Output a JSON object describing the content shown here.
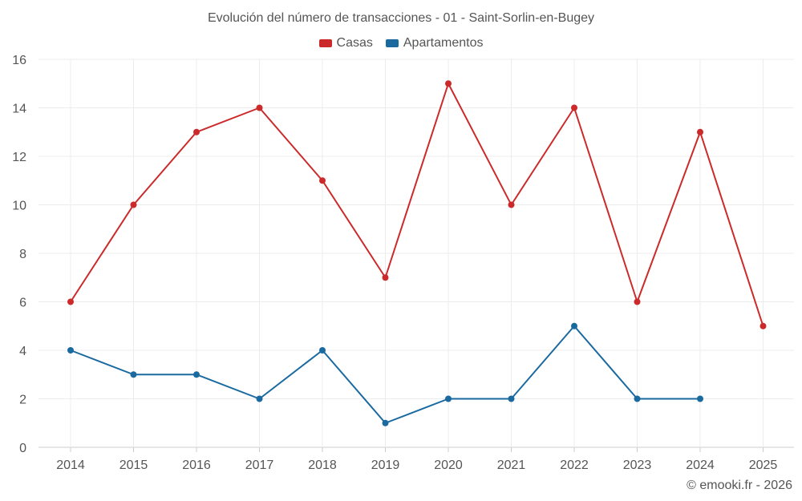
{
  "chart_data": {
    "type": "line",
    "title": "Evolución del número de transacciones - 01 - Saint-Sorlin-en-Bugey",
    "categories": [
      "2014",
      "2015",
      "2016",
      "2017",
      "2018",
      "2019",
      "2020",
      "2021",
      "2022",
      "2023",
      "2024",
      "2025"
    ],
    "yticks": [
      "0",
      "2",
      "4",
      "6",
      "8",
      "10",
      "12",
      "14",
      "16"
    ],
    "ylim": [
      0,
      16
    ],
    "grid": true,
    "legend_position": "top-center",
    "series": [
      {
        "name": "Casas",
        "color": "#cc2a2a",
        "values": [
          6,
          10,
          13,
          14,
          11,
          7,
          15,
          10,
          14,
          6,
          13,
          5
        ]
      },
      {
        "name": "Apartamentos",
        "color": "#1a6aa0",
        "values": [
          4,
          3,
          3,
          2,
          4,
          1,
          2,
          2,
          5,
          2,
          2,
          null
        ]
      }
    ],
    "credit": "© emooki.fr - 2026"
  }
}
